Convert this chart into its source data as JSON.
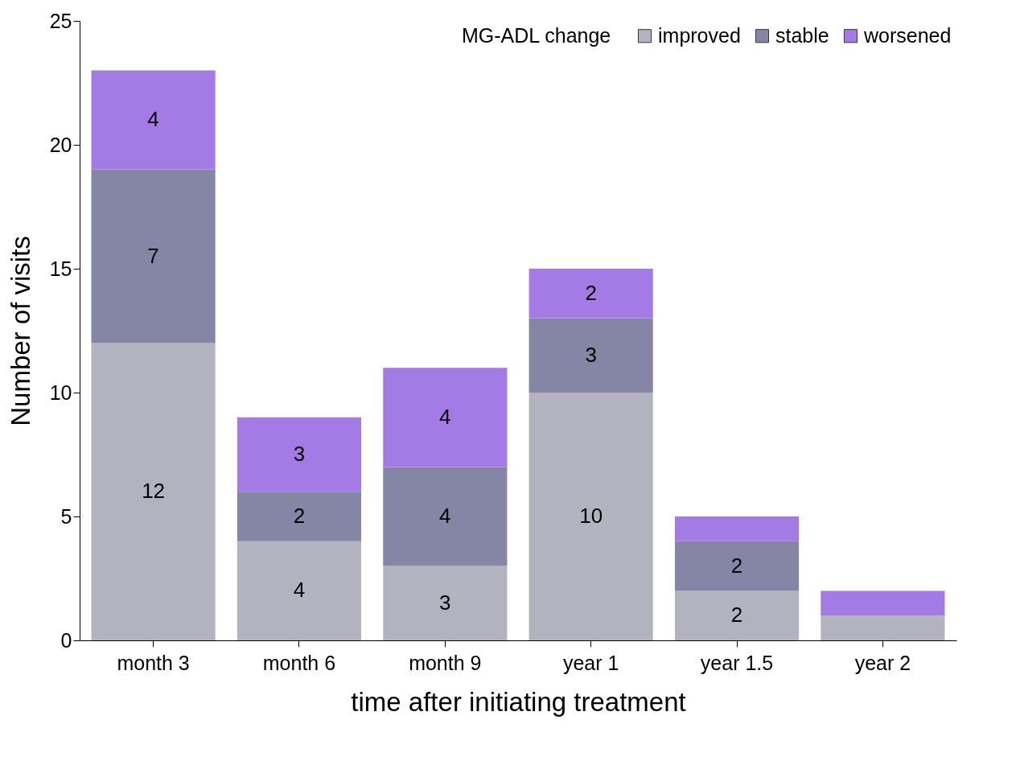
{
  "chart_data": {
    "type": "bar",
    "stacked": true,
    "xlabel": "time after initiating treatment",
    "ylabel": "Number of visits",
    "legend_title": "MG-ADL change",
    "legend": "top right",
    "grid": false,
    "categories": [
      "month 3",
      "month 6",
      "month 9",
      "year 1",
      "year 1.5",
      "year 2"
    ],
    "ylim": [
      0,
      25
    ],
    "yticks": [
      0,
      5,
      10,
      15,
      20,
      25
    ],
    "series": [
      {
        "name": "improved",
        "color": "#b3b3bf",
        "values": [
          12,
          4,
          3,
          10,
          2,
          1
        ],
        "value_labels": [
          "12",
          "4",
          "3",
          "10",
          "2",
          null
        ]
      },
      {
        "name": "stable",
        "color": "#8585a5",
        "values": [
          7,
          2,
          4,
          3,
          2,
          0
        ],
        "value_labels": [
          "7",
          "2",
          "4",
          "3",
          "2",
          null
        ]
      },
      {
        "name": "worsened",
        "color": "#a47be4",
        "values": [
          4,
          3,
          4,
          2,
          1,
          1
        ],
        "value_labels": [
          "4",
          "3",
          "4",
          "2",
          null,
          null
        ]
      }
    ]
  }
}
